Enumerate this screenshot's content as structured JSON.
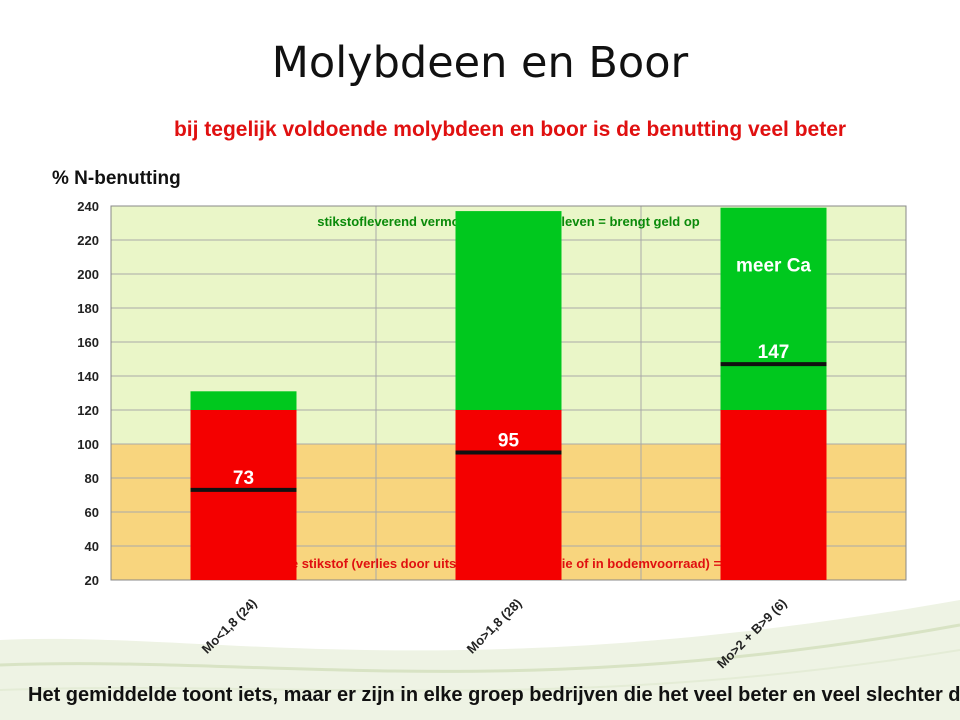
{
  "slide": {
    "title": "Molybdeen en Boor",
    "subtitle": "bij tegelijk voldoende molybdeen en boor is de benutting veel beter",
    "footer": "Het gemiddelde toont iets, maar er zijn in elke groep bedrijven die het veel beter en veel slechter doen"
  },
  "chart_data": {
    "type": "bar",
    "ylabel": "% N-benutting",
    "ylim": [
      20,
      240
    ],
    "yticks": [
      20,
      40,
      60,
      80,
      100,
      120,
      140,
      160,
      180,
      200,
      220,
      240
    ],
    "grid": true,
    "categories": [
      "Mo<1,8 (24)",
      "Mo>1,8 (28)",
      "Mo>2 + B>9 (6)"
    ],
    "series": [
      {
        "values": [
          100,
          100,
          100
        ]
      },
      {
        "values": [
          11,
          117,
          119
        ]
      }
    ],
    "markers": [
      73,
      95,
      147
    ],
    "marker_labels": [
      "73",
      "95",
      "147"
    ],
    "bar_annotations": [
      "",
      "",
      "meer Ca"
    ],
    "band_labels": {
      "upper": "stikstofleverend vermogen door bodemleven = brengt geld op",
      "lower": "onbenutte stikstof (verlies door uitspoeling en emissie of in bodemvoorraad) = kost geld"
    },
    "threshold": 100,
    "colors": {
      "upper_band": "#eaf6c8",
      "lower_band": "#f8d57e",
      "red": "#f40000",
      "green": "#00c81e",
      "marker": "#111111",
      "upper_label": "#0a8a0a",
      "lower_label": "#e01010"
    }
  }
}
